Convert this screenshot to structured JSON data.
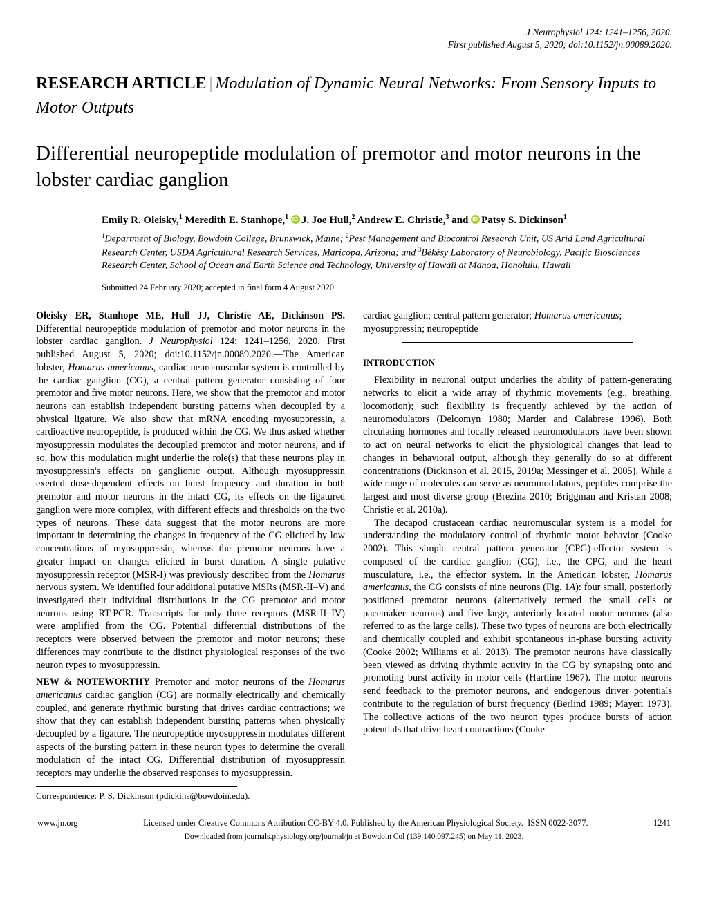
{
  "header": {
    "citation_line1": "J Neurophysiol 124: 1241–1256, 2020.",
    "citation_line2": "First published August 5, 2020; doi:10.1152/jn.00089.2020."
  },
  "article": {
    "type_label": "RESEARCH ARTICLE",
    "series": "Modulation of Dynamic Neural Networks: From Sensory Inputs to Motor Outputs",
    "title": "Differential neuropeptide modulation of premotor and motor neurons in the lobster cardiac ganglion"
  },
  "authors": {
    "a1_name": "Emily R. Oleisky,",
    "a1_sup": "1",
    "a2_name": "Meredith E. Stanhope,",
    "a2_sup": "1",
    "a3_name": "J. Joe Hull,",
    "a3_sup": "2",
    "a4_name": "Andrew E. Christie,",
    "a4_sup": "3",
    "and": "and",
    "a5_name": "Patsy S. Dickinson",
    "a5_sup": "1"
  },
  "affiliations": {
    "sup1": "1",
    "aff1": "Department of Biology, Bowdoin College, Brunswick, Maine; ",
    "sup2": "2",
    "aff2": "Pest Management and Biocontrol Research Unit, US Arid Land Agricultural Research Center, USDA Agricultural Research Services, Maricopa, Arizona; and ",
    "sup3": "3",
    "aff3": "Békésy Laboratory of Neurobiology, Pacific Biosciences Research Center, School of Ocean and Earth Science and Technology, University of Hawaii at Manoa, Honolulu, Hawaii"
  },
  "submitted": "Submitted 24 February 2020; accepted in final form 4 August 2020",
  "abstract": {
    "lead": "Oleisky ER, Stanhope ME, Hull JJ, Christie AE, Dickinson PS.",
    "body_pre": " Differential neuropeptide modulation of premotor and motor neurons in the lobster cardiac ganglion. ",
    "body_journal": "J Neurophysiol",
    "body_post": " 124: 1241–1256, 2020. First published August 5, 2020; doi:10.1152/jn.00089.2020.—The American lobster, ",
    "species": "Homarus americanus",
    "body_tail": ", cardiac neuromuscular system is controlled by the cardiac ganglion (CG), a central pattern generator consisting of four premotor and five motor neurons. Here, we show that the premotor and motor neurons can establish independent bursting patterns when decoupled by a physical ligature. We also show that mRNA encoding myosuppressin, a cardioactive neuropeptide, is produced within the CG. We thus asked whether myosuppressin modulates the decoupled premotor and motor neurons, and if so, how this modulation might underlie the role(s) that these neurons play in myosuppressin's effects on ganglionic output. Although myosuppressin exerted dose-dependent effects on burst frequency and duration in both premotor and motor neurons in the intact CG, its effects on the ligatured ganglion were more complex, with different effects and thresholds on the two types of neurons. These data suggest that the motor neurons are more important in determining the changes in frequency of the CG elicited by low concentrations of myosuppressin, whereas the premotor neurons have a greater impact on changes elicited in burst duration. A single putative myosuppressin receptor (MSR-I) was previously described from the ",
    "species2": "Homarus",
    "body_tail2": " nervous system. We identified four additional putative MSRs (MSR-II–V) and investigated their individual distributions in the CG premotor and motor neurons using RT-PCR. Transcripts for only three receptors (MSR-II–IV) were amplified from the CG. Potential differential distributions of the receptors were observed between the premotor and motor neurons; these differences may contribute to the distinct physiological responses of the two neuron types to myosuppressin."
  },
  "noteworthy": {
    "label": "NEW & NOTEWORTHY",
    "pre": " Premotor and motor neurons of the ",
    "species": "Homarus americanus",
    "post": " cardiac ganglion (CG) are normally electrically and chemically coupled, and generate rhythmic bursting that drives cardiac contractions; we show that they can establish independent bursting patterns when physically decoupled by a ligature. The neuropeptide myosuppressin modulates different aspects of the bursting pattern in these neuron types to determine the overall modulation of the intact CG. Differential distribution of myosuppressin receptors may underlie the observed responses to myosuppressin."
  },
  "correspondence": "Correspondence: P. S. Dickinson (pdickins@bowdoin.edu).",
  "keywords": {
    "pre": "cardiac ganglion; central pattern generator; ",
    "species": "Homarus americanus",
    "post": "; myosuppressin; neuropeptide"
  },
  "intro": {
    "heading": "INTRODUCTION",
    "p1": "Flexibility in neuronal output underlies the ability of pattern-generating networks to elicit a wide array of rhythmic movements (e.g., breathing, locomotion); such flexibility is frequently achieved by the action of neuromodulators (Delcomyn 1980; Marder and Calabrese 1996). Both circulating hormones and locally released neuromodulators have been shown to act on neural networks to elicit the physiological changes that lead to changes in behavioral output, although they generally do so at different concentrations (Dickinson et al. 2015, 2019a; Messinger et al. 2005). While a wide range of molecules can serve as neuromodulators, peptides comprise the largest and most diverse group (Brezina 2010; Briggman and Kristan 2008; Christie et al. 2010a).",
    "p2_pre": "The decapod crustacean cardiac neuromuscular system is a model for understanding the modulatory control of rhythmic motor behavior (Cooke 2002). This simple central pattern generator (CPG)-effector system is composed of the cardiac ganglion (CG), i.e., the CPG, and the heart musculature, i.e., the effector system. In the American lobster, ",
    "p2_species": "Homarus americanus",
    "p2_mid": ", the CG consists of nine neurons (Fig. 1",
    "p2_fig": "A",
    "p2_post": "): four small, posteriorly positioned premotor neurons (alternatively termed the small cells or pacemaker neurons) and five large, anteriorly located motor neurons (also referred to as the large cells). These two types of neurons are both electrically and chemically coupled and exhibit spontaneous in-phase bursting activity (Cooke 2002; Williams et al. 2013). The premotor neurons have classically been viewed as driving rhythmic activity in the CG by synapsing onto and promoting burst activity in motor cells (Hartline 1967). The motor neurons send feedback to the premotor neurons, and endogenous driver potentials contribute to the regulation of burst frequency (Berlind 1989; Mayeri 1973). The collective actions of the two neuron types produce bursts of action potentials that drive heart contractions (Cooke"
  },
  "footer": {
    "url": "www.jn.org",
    "license": "Licensed under Creative Commons Attribution CC-BY 4.0. Published by the American Physiological Society.",
    "issn": "ISSN 0022-3077.",
    "pagenum": "1241",
    "download": "Downloaded from journals.physiology.org/journal/jn at Bowdoin Col (139.140.097.245) on May 11, 2023."
  }
}
